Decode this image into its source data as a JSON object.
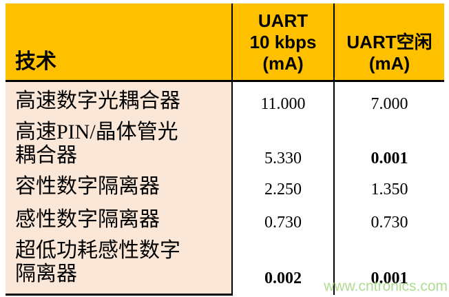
{
  "table": {
    "header": {
      "technology_label": "技术",
      "uart_10kbps_lines": [
        "UART",
        "10 kbps",
        "(mA)"
      ],
      "uart_idle_lines": [
        "UART空闲",
        "(mA)"
      ]
    },
    "rows": [
      {
        "label_lines": [
          "高速数字光耦合器"
        ],
        "uart_10kbps": "11.000",
        "uart_idle": "7.000",
        "bold_10kbps": false,
        "bold_idle": false
      },
      {
        "label_lines": [
          "高速PIN/晶体管光",
          "耦合器"
        ],
        "uart_10kbps": "5.330",
        "uart_idle": "0.001",
        "bold_10kbps": false,
        "bold_idle": true
      },
      {
        "label_lines": [
          "容性数字隔离器"
        ],
        "uart_10kbps": "2.250",
        "uart_idle": "1.350",
        "bold_10kbps": false,
        "bold_idle": false
      },
      {
        "label_lines": [
          "感性数字隔离器"
        ],
        "uart_10kbps": "0.730",
        "uart_idle": "0.730",
        "bold_10kbps": false,
        "bold_idle": false
      },
      {
        "label_lines": [
          "超低功耗感性数字",
          "隔离器"
        ],
        "uart_10kbps": "0.002",
        "uart_idle": "0.001",
        "bold_10kbps": true,
        "bold_idle": true
      }
    ]
  },
  "watermark": "www.cntronics.com",
  "colors": {
    "header_bg": "#FFC000",
    "row_label_bg": "#FBE7D8",
    "border": "#000000",
    "watermark": "#A3D67F"
  }
}
